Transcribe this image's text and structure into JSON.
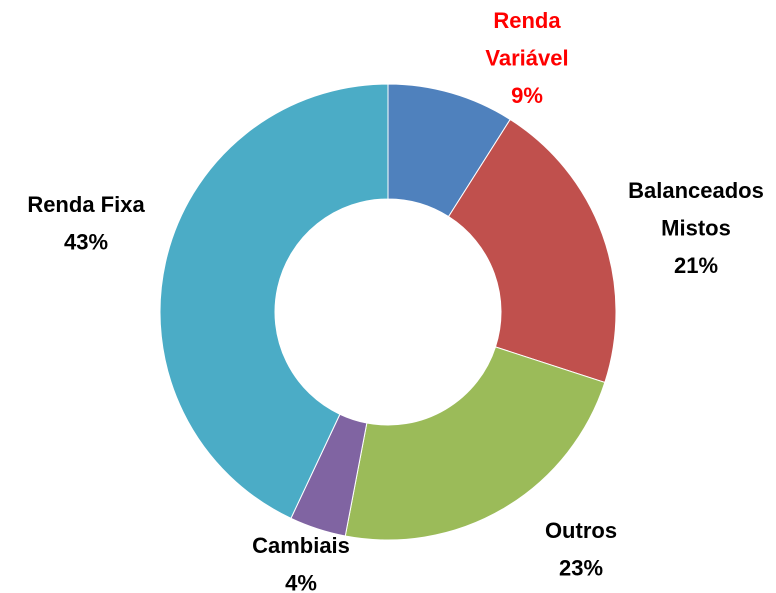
{
  "chart_data": {
    "type": "donut",
    "categories": [
      "Renda Variável",
      "Balanceados Mistos",
      "Outros",
      "Cambiais",
      "Renda Fixa"
    ],
    "values": [
      9,
      21,
      23,
      4,
      43
    ],
    "value_labels": [
      "9%",
      "21%",
      "23%",
      "4%",
      "43%"
    ],
    "colors": [
      "#4f81bd",
      "#c0504d",
      "#9bbb59",
      "#8064a2",
      "#4bacc6"
    ],
    "label_colors": [
      "#ff0000",
      "#000000",
      "#000000",
      "#000000",
      "#000000"
    ]
  }
}
